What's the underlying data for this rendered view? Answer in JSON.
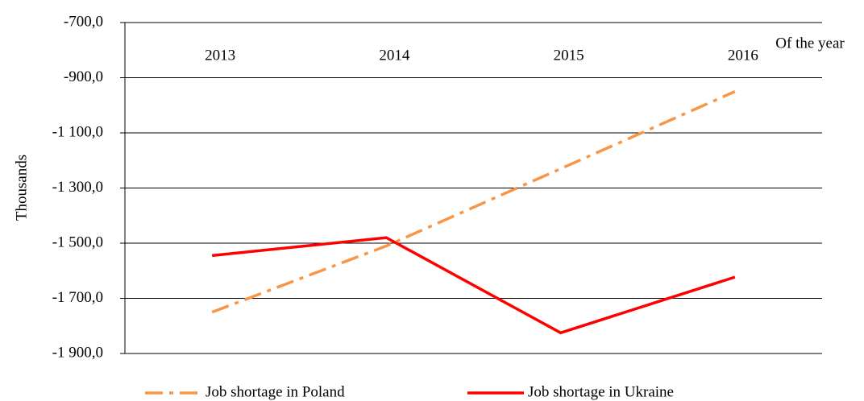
{
  "chart_data": {
    "type": "line",
    "categories": [
      "2013",
      "2014",
      "2015",
      "2016"
    ],
    "x_label": "Of the year",
    "y_label": "Thousands",
    "series": [
      {
        "name": "Job shortage in Poland",
        "color": "#f79646",
        "line_style": "dash-dot",
        "values": [
          -1750,
          -1510,
          -1230,
          -950
        ]
      },
      {
        "name": "Job shortage in Ukraine",
        "color": "#ff0000",
        "line_style": "solid",
        "values": [
          -1545,
          -1480,
          -1825,
          -1623
        ]
      }
    ],
    "ylim": [
      -1900,
      -700
    ],
    "yticks": [
      {
        "value": -1900,
        "label": "-1 900,0"
      },
      {
        "value": -1700,
        "label": "-1 700,0"
      },
      {
        "value": -1500,
        "label": "-1 500,0"
      },
      {
        "value": -1300,
        "label": "-1 300,0"
      },
      {
        "value": -1100,
        "label": "-1 100,0"
      },
      {
        "value": -900,
        "label": "-900,0"
      },
      {
        "value": -700,
        "label": "-700,0"
      }
    ],
    "grid": true,
    "legend": "bottom"
  }
}
